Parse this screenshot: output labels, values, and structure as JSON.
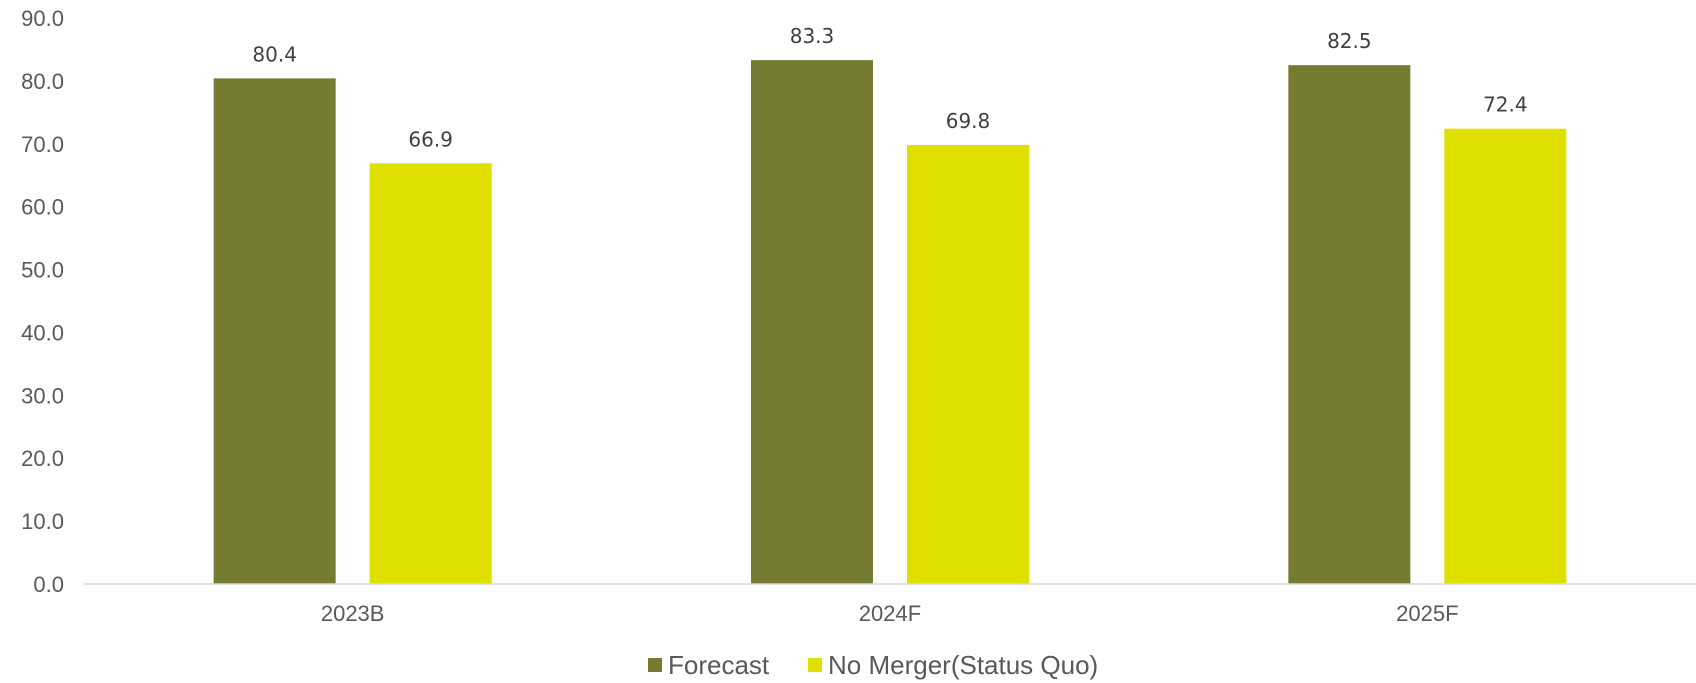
{
  "chart_data": {
    "type": "bar",
    "categories": [
      "2023B",
      "2024F",
      "2025F"
    ],
    "series": [
      {
        "name": "Forecast",
        "values": [
          80.4,
          83.3,
          82.5
        ],
        "color": "#767b32"
      },
      {
        "name": "No Merger(Status Quo)",
        "values": [
          66.9,
          69.8,
          72.4
        ],
        "color": "#e0e000"
      }
    ],
    "data_labels": [
      [
        "80.4",
        "83.3",
        "82.5"
      ],
      [
        "66.9",
        "69.8",
        "72.4"
      ]
    ],
    "yticks": [
      "0.0",
      "10.0",
      "20.0",
      "30.0",
      "40.0",
      "50.0",
      "60.0",
      "70.0",
      "80.0",
      "90.0"
    ],
    "ylim": [
      0,
      90
    ],
    "grid": false,
    "legend_position": "bottom",
    "title": "",
    "xlabel": "",
    "ylabel": ""
  }
}
